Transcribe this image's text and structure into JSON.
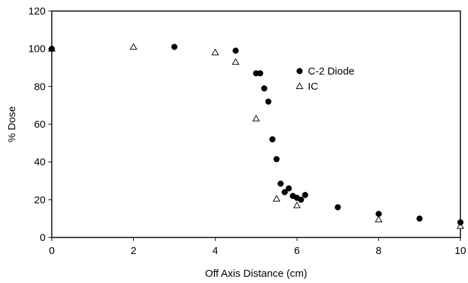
{
  "chart_data": {
    "type": "scatter",
    "xlabel": "Off Axis Distance (cm)",
    "ylabel": "% Dose",
    "xlim": [
      0,
      10
    ],
    "ylim": [
      0,
      120
    ],
    "x_ticks": [
      0,
      2,
      4,
      6,
      8,
      10
    ],
    "y_ticks": [
      0,
      20,
      40,
      60,
      80,
      100,
      120
    ],
    "grid": false,
    "legend_position": "top-right",
    "series": [
      {
        "name": "C-2 Diode",
        "marker": "filled-circle",
        "color": "#000000",
        "points": [
          [
            0,
            100
          ],
          [
            3,
            101
          ],
          [
            4.5,
            99
          ],
          [
            5,
            87
          ],
          [
            5.1,
            87
          ],
          [
            5.2,
            79
          ],
          [
            5.3,
            72
          ],
          [
            5.4,
            52
          ],
          [
            5.5,
            41.5
          ],
          [
            5.6,
            28.5
          ],
          [
            5.7,
            24
          ],
          [
            5.8,
            26
          ],
          [
            5.9,
            22
          ],
          [
            6.0,
            21
          ],
          [
            6.1,
            20
          ],
          [
            6.2,
            22.5
          ],
          [
            7,
            16
          ],
          [
            8,
            12.5
          ],
          [
            9,
            10
          ],
          [
            10,
            8
          ]
        ]
      },
      {
        "name": "IC",
        "marker": "open-triangle",
        "color": "#000000",
        "points": [
          [
            0,
            100
          ],
          [
            2,
            101
          ],
          [
            4,
            98
          ],
          [
            4.5,
            93
          ],
          [
            5,
            63
          ],
          [
            5.5,
            20.5
          ],
          [
            6,
            17
          ],
          [
            8,
            9.5
          ],
          [
            10,
            6
          ]
        ]
      }
    ]
  }
}
